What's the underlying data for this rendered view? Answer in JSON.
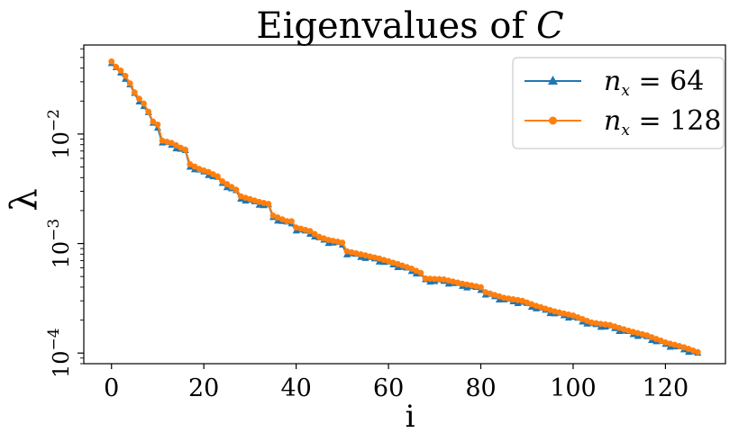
{
  "chart_data": {
    "type": "line",
    "title": {
      "text": "Eigenvalues of ",
      "math": "C"
    },
    "xlabel": "i",
    "ylabel": "λ",
    "yscale": "log",
    "xlim": [
      -6,
      133
    ],
    "ylim": [
      8e-05,
      0.065
    ],
    "x_ticks": [
      {
        "label": "0",
        "value": 0
      },
      {
        "label": "20",
        "value": 20
      },
      {
        "label": "40",
        "value": 40
      },
      {
        "label": "60",
        "value": 60
      },
      {
        "label": "80",
        "value": 80
      },
      {
        "label": "100",
        "value": 100
      },
      {
        "label": "120",
        "value": 120
      }
    ],
    "y_ticks": [
      {
        "base": "10",
        "exp": "−2",
        "value": 0.01
      },
      {
        "base": "10",
        "exp": "−3",
        "value": 0.001
      },
      {
        "base": "10",
        "exp": "−4",
        "value": 0.0001
      }
    ],
    "legend_position": "upper right",
    "anchors": [
      [
        0,
        0.046
      ],
      [
        1,
        0.041
      ],
      [
        2,
        0.038
      ],
      [
        3,
        0.034
      ],
      [
        4,
        0.029
      ],
      [
        5,
        0.024
      ],
      [
        6,
        0.021
      ],
      [
        7,
        0.019
      ],
      [
        8,
        0.016
      ],
      [
        9,
        0.013
      ],
      [
        10,
        0.0122
      ],
      [
        11,
        0.0087
      ],
      [
        13,
        0.0083
      ],
      [
        15,
        0.0075
      ],
      [
        16,
        0.0072
      ],
      [
        17,
        0.0053
      ],
      [
        19,
        0.0048
      ],
      [
        21,
        0.0045
      ],
      [
        23,
        0.0041
      ],
      [
        24,
        0.0037
      ],
      [
        27,
        0.0031
      ],
      [
        28,
        0.0027
      ],
      [
        32,
        0.0024
      ],
      [
        34,
        0.0023
      ],
      [
        35,
        0.0018
      ],
      [
        38,
        0.0016
      ],
      [
        39,
        0.0016
      ],
      [
        40,
        0.0014
      ],
      [
        43,
        0.0013
      ],
      [
        45,
        0.00115
      ],
      [
        47,
        0.00108
      ],
      [
        50,
        0.00102
      ],
      [
        51,
        0.00085
      ],
      [
        55,
        0.00078
      ],
      [
        58,
        0.00073
      ],
      [
        62,
        0.00065
      ],
      [
        65,
        0.00059
      ],
      [
        67,
        0.00054
      ],
      [
        68,
        0.00048
      ],
      [
        72,
        0.00047
      ],
      [
        76,
        0.00043
      ],
      [
        80,
        0.0004
      ],
      [
        81,
        0.00036
      ],
      [
        85,
        0.00032
      ],
      [
        89,
        0.0003
      ],
      [
        92,
        0.00027
      ],
      [
        96,
        0.00024
      ],
      [
        100,
        0.00022
      ],
      [
        104,
        0.00019
      ],
      [
        108,
        0.00018
      ],
      [
        112,
        0.00016
      ],
      [
        116,
        0.000145
      ],
      [
        120,
        0.000125
      ],
      [
        124,
        0.000113
      ],
      [
        127,
        0.000102
      ]
    ],
    "series": [
      {
        "name": "n_x = 64",
        "sub": "x",
        "value_label": "64",
        "color": "#1f77b4",
        "marker": "triangle",
        "n_points": 128,
        "offset": 0.96,
        "jitter": 0.03
      },
      {
        "name": "n_x = 128",
        "sub": "x",
        "value_label": "128",
        "color": "#ff7f0e",
        "marker": "circle",
        "n_points": 128,
        "offset": 1.0,
        "jitter": 0.0
      }
    ]
  }
}
